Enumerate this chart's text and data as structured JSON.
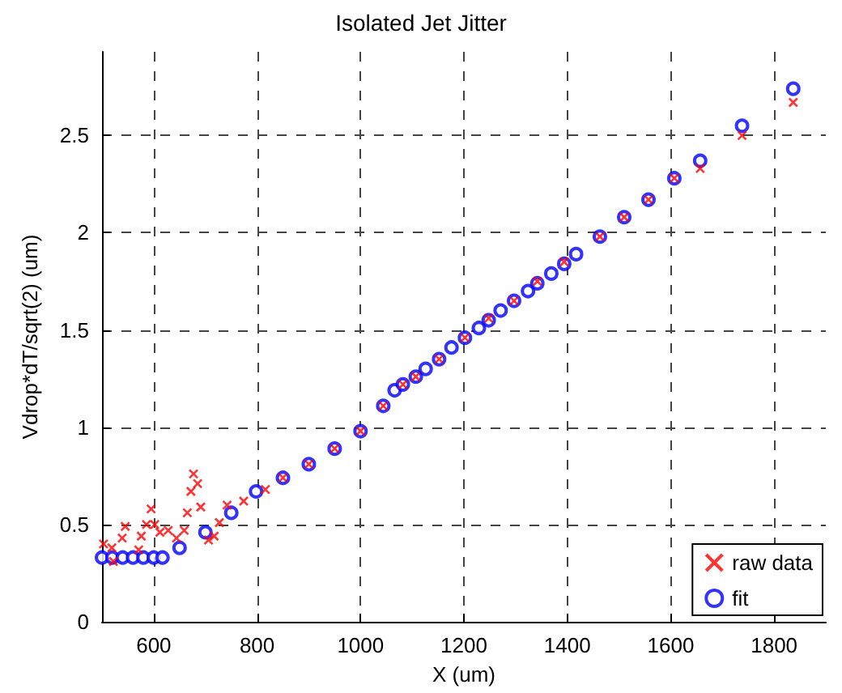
{
  "chart_data": {
    "type": "scatter",
    "title": "Isolated Jet Jitter",
    "xlabel": "X (um)",
    "ylabel": "Vdrop*dT/sqrt(2) (um)",
    "xlim": [
      500,
      1900
    ],
    "xticks": [
      600,
      800,
      1000,
      1200,
      1400,
      1600,
      1800
    ],
    "ylim": [
      0,
      2.93
    ],
    "yticks": [
      0,
      0.5,
      1,
      1.5,
      2,
      2.5
    ],
    "grid": true,
    "legend": "bottom right",
    "series": [
      {
        "name": "raw data",
        "color": "#ff0000",
        "marker": "cross",
        "x": [
          503,
          519,
          522,
          539,
          545,
          571,
          576,
          586,
          595,
          602,
          612,
          628,
          644,
          659,
          665,
          672,
          677,
          685,
          691,
          706,
          717,
          727,
          742,
          774,
          816,
          850,
          900,
          950,
          1000,
          1044,
          1082,
          1107,
          1152,
          1202,
          1248,
          1297,
          1342,
          1394,
          1463,
          1510,
          1557,
          1607,
          1657,
          1738,
          1837
        ],
        "values": [
          0.4,
          0.38,
          0.31,
          0.43,
          0.49,
          0.37,
          0.44,
          0.5,
          0.58,
          0.5,
          0.46,
          0.47,
          0.43,
          0.47,
          0.56,
          0.67,
          0.76,
          0.71,
          0.59,
          0.42,
          0.44,
          0.51,
          0.6,
          0.62,
          0.68,
          0.74,
          0.81,
          0.89,
          0.98,
          1.11,
          1.22,
          1.26,
          1.35,
          1.46,
          1.56,
          1.65,
          1.75,
          1.85,
          1.98,
          2.08,
          2.17,
          2.28,
          2.33,
          2.5,
          2.67
        ]
      },
      {
        "name": "fit",
        "color": "#0000ff",
        "marker": "circle",
        "x": [
          500,
          520,
          540,
          560,
          580,
          600,
          617,
          650,
          700,
          750,
          798,
          850,
          900,
          950,
          1000,
          1044,
          1066,
          1082,
          1107,
          1126,
          1152,
          1176,
          1202,
          1229,
          1248,
          1271,
          1297,
          1324,
          1342,
          1369,
          1394,
          1417,
          1463,
          1510,
          1557,
          1607,
          1657,
          1738,
          1837
        ],
        "values": [
          0.33,
          0.33,
          0.33,
          0.33,
          0.33,
          0.33,
          0.33,
          0.38,
          0.46,
          0.56,
          0.67,
          0.74,
          0.81,
          0.89,
          0.98,
          1.11,
          1.19,
          1.22,
          1.26,
          1.3,
          1.35,
          1.41,
          1.46,
          1.51,
          1.55,
          1.6,
          1.65,
          1.7,
          1.74,
          1.79,
          1.84,
          1.89,
          1.98,
          2.08,
          2.17,
          2.28,
          2.37,
          2.55,
          2.74
        ]
      }
    ]
  }
}
